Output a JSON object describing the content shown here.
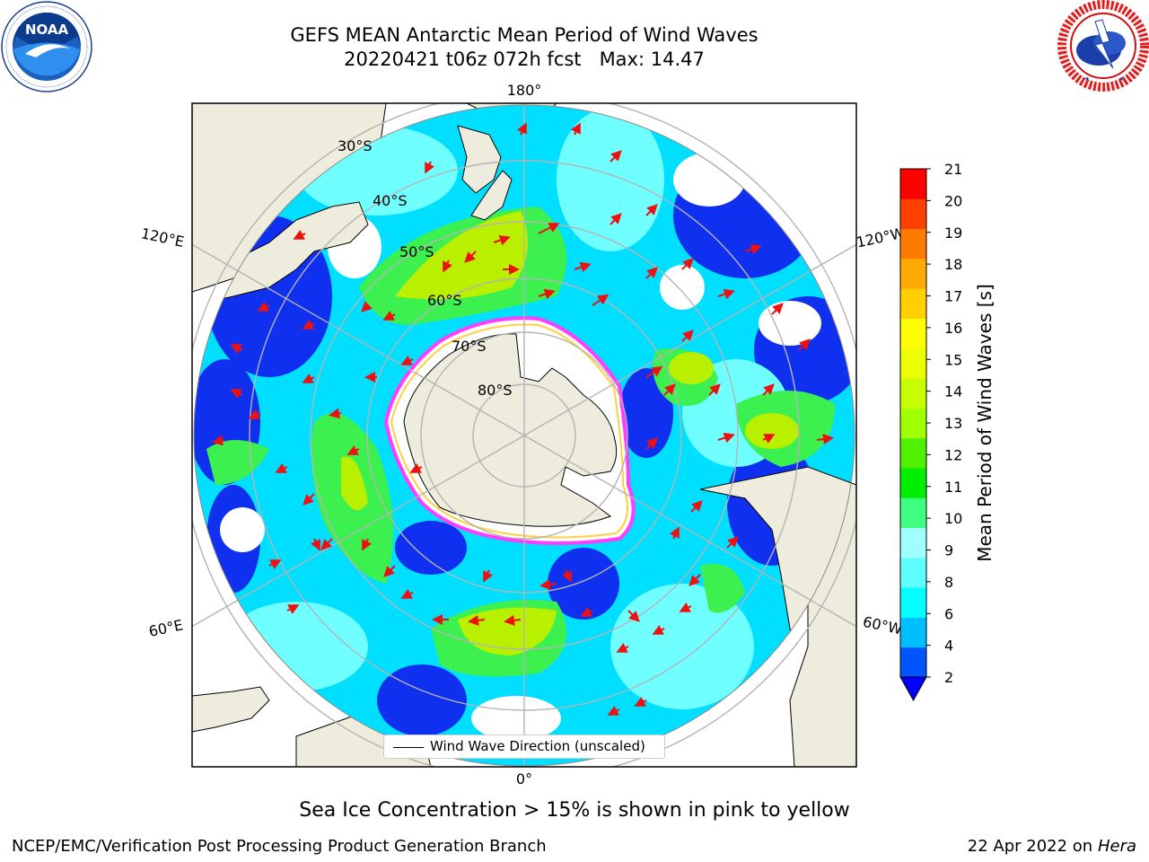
{
  "header": {
    "title_line1": "GEFS MEAN Antarctic Mean Period of Wind Waves",
    "title_line2": "20220421 t06z 072h fcst   Max: 14.47"
  },
  "logos": {
    "left": "noaa-logo",
    "left_text": "NOAA",
    "left_ring_text": "NATIONAL OCEANIC AND ATMOSPHERIC ADMINISTRATION · U.S. DEPARTMENT OF COMMERCE",
    "right": "national-weather-service-logo",
    "right_ring_text": "NATIONAL WEATHER SERVICE"
  },
  "map": {
    "projection": "south-polar-stereographic",
    "longitude_labels": {
      "top": "180°",
      "bottom": "0°",
      "left_upper": "120°E",
      "left_lower": "60°E",
      "right_upper": "120°W",
      "right_lower": "60°W"
    },
    "latitude_labels": [
      "30°S",
      "40°S",
      "50°S",
      "60°S",
      "70°S",
      "80°S"
    ],
    "land_color": "#eeecdc",
    "ice_edge_colors": [
      "#ff3cff",
      "#ffd040"
    ],
    "arrow_color": "#ee1111"
  },
  "legend": {
    "label": "Wind Wave Direction (unscaled)"
  },
  "colorbar": {
    "label": "Mean Period of Wind Waves [s]",
    "ticks": [
      "2",
      "4",
      "6",
      "8",
      "9",
      "10",
      "11",
      "12",
      "13",
      "14",
      "15",
      "16",
      "17",
      "18",
      "19",
      "20",
      "21"
    ],
    "colors": [
      "#0055ff",
      "#00bfff",
      "#00ffff",
      "#60ffff",
      "#a0ffff",
      "#40ff80",
      "#00ee00",
      "#50f000",
      "#a0ff00",
      "#c8ff00",
      "#ecff00",
      "#ffff00",
      "#ffd000",
      "#ffaa00",
      "#ff7a00",
      "#ff4000",
      "#ff0000"
    ],
    "under_color": "#0000ff"
  },
  "notes": {
    "sea_ice": "Sea Ice Concentration > 15% is shown in pink to yellow"
  },
  "footer": {
    "left": "NCEP/EMC/Verification Post Processing Product Generation Branch",
    "right_prefix": "22 Apr 2022 on ",
    "right_machine": "Hera"
  }
}
